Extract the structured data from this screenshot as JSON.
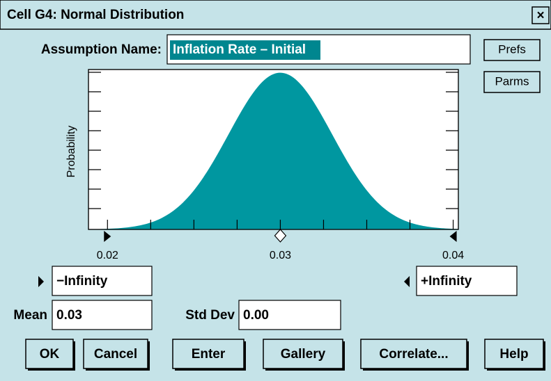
{
  "window": {
    "title": "Cell G4: Normal Distribution",
    "close": "×"
  },
  "assumption": {
    "label": "Assumption Name:",
    "name": "Inflation Rate – Initial"
  },
  "side_buttons": [
    "Prefs",
    "Parms"
  ],
  "chart": {
    "type": "normal",
    "ylabel": "Probability",
    "mean": 0.03,
    "std_dev": 0.003,
    "xlim": [
      0.0189,
      0.0403
    ],
    "xticks": [
      0.02,
      0.03,
      0.04
    ],
    "xminorticks": [
      0.0225,
      0.025,
      0.0275,
      0.0325,
      0.035,
      0.0375
    ],
    "color": "#0097a0"
  },
  "bounds": {
    "lower": "−Infinity",
    "upper": "+Infinity"
  },
  "params": {
    "mean_label": "Mean",
    "mean_value": "0.03",
    "std_label": "Std Dev",
    "std_value": "0.00"
  },
  "buttons": [
    "OK",
    "Cancel",
    "Enter",
    "Gallery",
    "Correlate...",
    "Help"
  ]
}
